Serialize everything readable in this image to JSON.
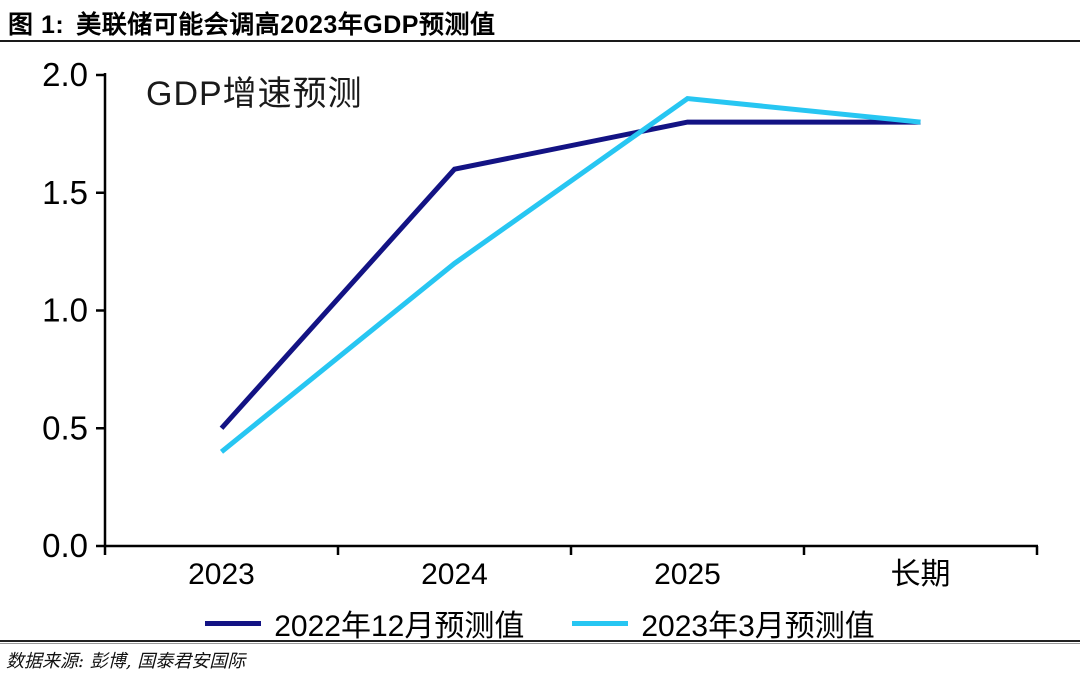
{
  "header": {
    "figure_label": "图 1:",
    "title": "美联储可能会调高2023年GDP预测值"
  },
  "chart_data": {
    "type": "line",
    "title": "GDP增速预测",
    "categories": [
      "2023",
      "2024",
      "2025",
      "长期"
    ],
    "series": [
      {
        "name": "2022年12月预测值",
        "color": "#131384",
        "values": [
          0.5,
          1.6,
          1.8,
          1.8
        ]
      },
      {
        "name": "2023年3月预测值",
        "color": "#27C6F2",
        "values": [
          0.4,
          1.2,
          1.9,
          1.8
        ]
      }
    ],
    "ylim": [
      0.0,
      2.0
    ],
    "ytick_labels": [
      "0.0",
      "0.5",
      "1.0",
      "1.5",
      "2.0"
    ],
    "ytick_values": [
      0.0,
      0.5,
      1.0,
      1.5,
      2.0
    ],
    "xlabel": "",
    "ylabel": "",
    "grid": false,
    "legend_position": "bottom",
    "axis_color": "#000000"
  },
  "footer": {
    "source": "数据来源: 彭博, 国泰君安国际"
  }
}
